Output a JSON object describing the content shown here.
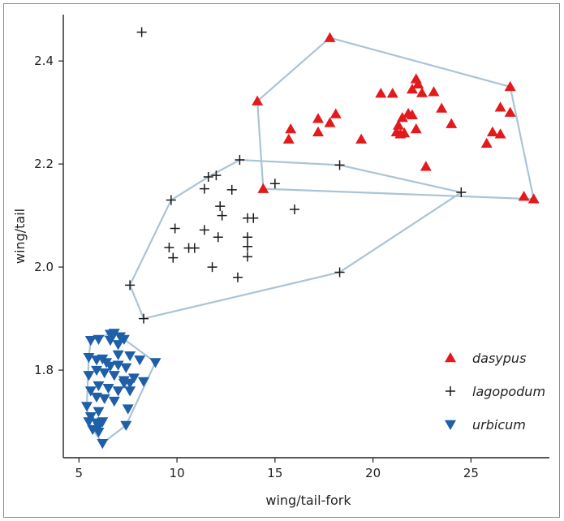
{
  "colors": {
    "dasypus": "#e31a1c",
    "lagopodum": "#1a1a1a",
    "urbicum": "#1f5fa8",
    "hull": "#a9c4d6",
    "axis": "#222222",
    "frame": "#8c8c8c"
  },
  "chart_data": {
    "type": "scatter",
    "title": "",
    "xlabel": "wing/tail-fork",
    "ylabel": "wing/tail",
    "xlim": [
      4.2,
      29.0
    ],
    "ylim": [
      1.63,
      2.49
    ],
    "xticks": [
      5,
      10,
      15,
      20,
      25
    ],
    "yticks": [
      1.8,
      2.0,
      2.2,
      2.4
    ],
    "xtick_labels": [
      "5",
      "10",
      "15",
      "20",
      "25"
    ],
    "ytick_labels": [
      "1.8",
      "2.0",
      "2.2",
      "2.4"
    ],
    "grid": false,
    "legend_position": "bottom-right",
    "series": [
      {
        "name": "dasypus",
        "marker": "triangle-up",
        "hull": true,
        "points": [
          [
            17.8,
            2.445
          ],
          [
            27.0,
            2.35
          ],
          [
            28.2,
            2.132
          ],
          [
            27.7,
            2.137
          ],
          [
            14.4,
            2.152
          ],
          [
            14.1,
            2.322
          ],
          [
            15.8,
            2.268
          ],
          [
            15.7,
            2.248
          ],
          [
            17.2,
            2.288
          ],
          [
            17.2,
            2.262
          ],
          [
            17.8,
            2.28
          ],
          [
            18.1,
            2.297
          ],
          [
            19.4,
            2.248
          ],
          [
            20.4,
            2.337
          ],
          [
            21.0,
            2.337
          ],
          [
            21.2,
            2.262
          ],
          [
            21.3,
            2.275
          ],
          [
            21.4,
            2.258
          ],
          [
            21.6,
            2.26
          ],
          [
            21.5,
            2.29
          ],
          [
            21.8,
            2.298
          ],
          [
            22.0,
            2.295
          ],
          [
            22.0,
            2.345
          ],
          [
            22.2,
            2.365
          ],
          [
            22.3,
            2.355
          ],
          [
            22.2,
            2.268
          ],
          [
            22.5,
            2.338
          ],
          [
            22.7,
            2.195
          ],
          [
            23.1,
            2.34
          ],
          [
            23.5,
            2.308
          ],
          [
            24.0,
            2.278
          ],
          [
            25.8,
            2.24
          ],
          [
            26.1,
            2.262
          ],
          [
            26.5,
            2.31
          ],
          [
            26.5,
            2.258
          ],
          [
            27.0,
            2.3
          ]
        ]
      },
      {
        "name": "lagopodum",
        "marker": "plus",
        "hull": true,
        "points": [
          [
            8.2,
            2.456
          ],
          [
            13.2,
            2.208
          ],
          [
            18.3,
            2.198
          ],
          [
            24.5,
            2.145
          ],
          [
            18.3,
            1.99
          ],
          [
            8.3,
            1.9
          ],
          [
            7.6,
            1.965
          ],
          [
            9.7,
            2.13
          ],
          [
            15.0,
            2.162
          ],
          [
            11.6,
            2.175
          ],
          [
            12.0,
            2.178
          ],
          [
            11.4,
            2.152
          ],
          [
            12.8,
            2.15
          ],
          [
            12.2,
            2.118
          ],
          [
            12.3,
            2.1
          ],
          [
            9.9,
            2.075
          ],
          [
            11.4,
            2.072
          ],
          [
            13.6,
            2.095
          ],
          [
            13.9,
            2.095
          ],
          [
            16.0,
            2.112
          ],
          [
            9.6,
            2.038
          ],
          [
            10.6,
            2.037
          ],
          [
            10.9,
            2.037
          ],
          [
            9.8,
            2.018
          ],
          [
            12.1,
            2.058
          ],
          [
            13.6,
            2.058
          ],
          [
            13.6,
            2.04
          ],
          [
            13.6,
            2.02
          ],
          [
            11.8,
            2.0
          ],
          [
            13.1,
            1.98
          ]
        ]
      },
      {
        "name": "urbicum",
        "marker": "triangle-down",
        "hull": true,
        "points": [
          [
            6.6,
            1.87
          ],
          [
            6.8,
            1.872
          ],
          [
            7.1,
            1.865
          ],
          [
            7.3,
            1.86
          ],
          [
            6.6,
            1.858
          ],
          [
            7.0,
            1.85
          ],
          [
            5.6,
            1.858
          ],
          [
            6.0,
            1.86
          ],
          [
            8.9,
            1.815
          ],
          [
            7.6,
            1.828
          ],
          [
            8.1,
            1.82
          ],
          [
            7.0,
            1.83
          ],
          [
            5.5,
            1.825
          ],
          [
            5.9,
            1.82
          ],
          [
            6.2,
            1.822
          ],
          [
            6.4,
            1.815
          ],
          [
            6.6,
            1.808
          ],
          [
            7.0,
            1.81
          ],
          [
            7.4,
            1.805
          ],
          [
            5.5,
            1.79
          ],
          [
            5.9,
            1.8
          ],
          [
            6.3,
            1.795
          ],
          [
            6.8,
            1.79
          ],
          [
            7.3,
            1.78
          ],
          [
            7.6,
            1.775
          ],
          [
            7.8,
            1.785
          ],
          [
            8.3,
            1.778
          ],
          [
            7.3,
            1.775
          ],
          [
            6.0,
            1.77
          ],
          [
            6.5,
            1.765
          ],
          [
            7.0,
            1.76
          ],
          [
            7.6,
            1.76
          ],
          [
            5.6,
            1.76
          ],
          [
            5.9,
            1.748
          ],
          [
            6.3,
            1.745
          ],
          [
            6.8,
            1.74
          ],
          [
            7.5,
            1.725
          ],
          [
            5.4,
            1.73
          ],
          [
            6.0,
            1.72
          ],
          [
            5.6,
            1.71
          ],
          [
            5.5,
            1.7
          ],
          [
            5.9,
            1.698
          ],
          [
            6.2,
            1.7
          ],
          [
            5.7,
            1.685
          ],
          [
            6.0,
            1.68
          ],
          [
            7.4,
            1.693
          ],
          [
            6.0,
            1.69
          ],
          [
            6.2,
            1.658
          ]
        ]
      }
    ]
  }
}
